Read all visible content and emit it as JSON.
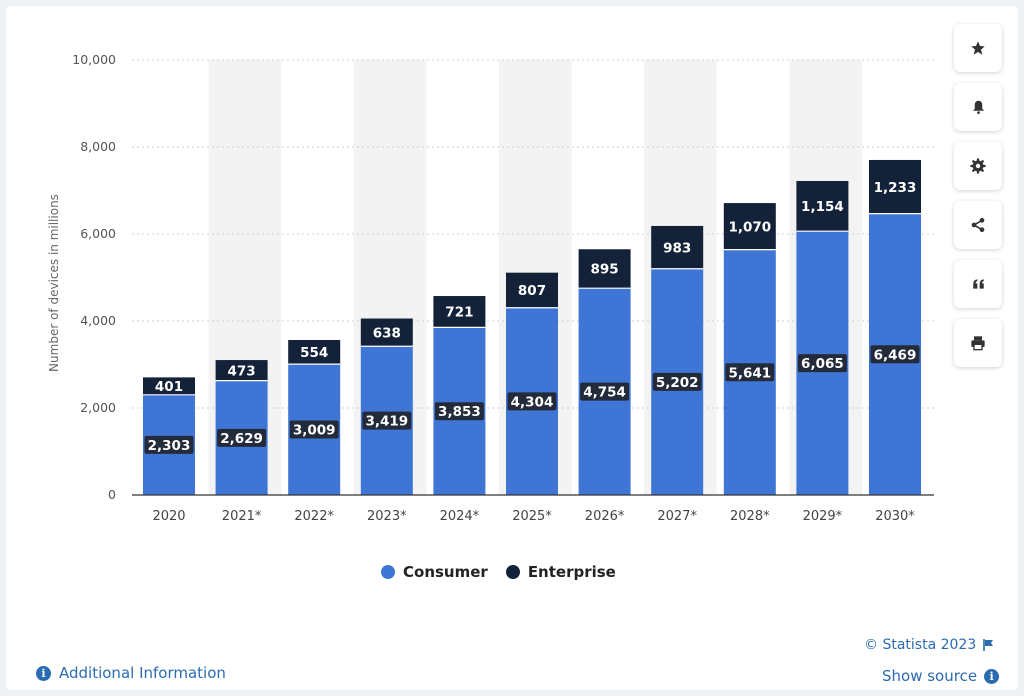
{
  "colors": {
    "consumer": "#3f76d6",
    "enterprise": "#132238",
    "band": "#f3f3f3",
    "grid": "#cfcfcf",
    "link": "#2b6cb0"
  },
  "sidebar": {
    "buttons": [
      {
        "icon": "star-icon"
      },
      {
        "icon": "bell-icon"
      },
      {
        "icon": "gear-icon"
      },
      {
        "icon": "share-icon"
      },
      {
        "icon": "quote-icon"
      },
      {
        "icon": "print-icon"
      }
    ]
  },
  "footer": {
    "additional_info": "Additional Information",
    "copyright": "© Statista 2023",
    "show_source": "Show source"
  },
  "chart_data": {
    "type": "bar",
    "stacked": true,
    "categories": [
      "2020",
      "2021*",
      "2022*",
      "2023*",
      "2024*",
      "2025*",
      "2026*",
      "2027*",
      "2028*",
      "2029*",
      "2030*"
    ],
    "series": [
      {
        "name": "Consumer",
        "values": [
          2303,
          2629,
          3009,
          3419,
          3853,
          4304,
          4754,
          5202,
          5641,
          6065,
          6469
        ],
        "labels": [
          "2,303",
          "2,629",
          "3,009",
          "3,419",
          "3,853",
          "4,304",
          "4,754",
          "5,202",
          "5,641",
          "6,065",
          "6,469"
        ]
      },
      {
        "name": "Enterprise",
        "values": [
          401,
          473,
          554,
          638,
          721,
          807,
          895,
          983,
          1070,
          1154,
          1233
        ],
        "labels": [
          "401",
          "473",
          "554",
          "638",
          "721",
          "807",
          "895",
          "983",
          "1,070",
          "1,154",
          "1,233"
        ]
      }
    ],
    "ylabel": "Number of devices in millions",
    "ylim": [
      0,
      10000
    ],
    "yticks": [
      0,
      2000,
      4000,
      6000,
      8000,
      10000
    ],
    "ytick_labels": [
      "0",
      "2,000",
      "4,000",
      "6,000",
      "8,000",
      "10,000"
    ],
    "grid": true,
    "legend_position": "bottom-center"
  }
}
